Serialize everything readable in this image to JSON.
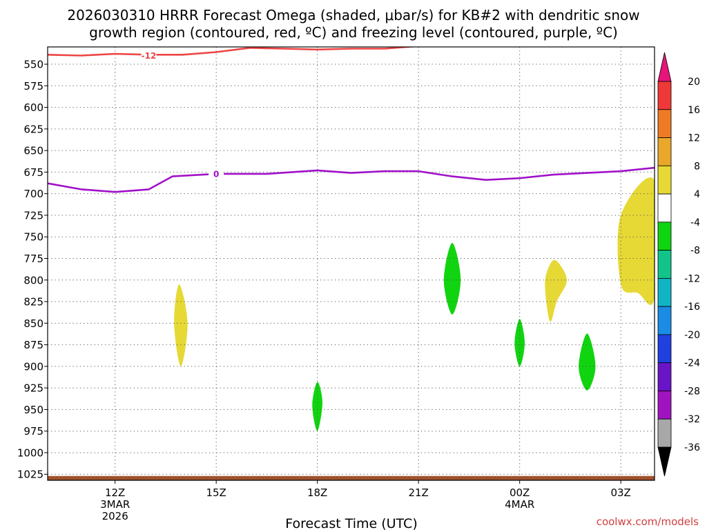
{
  "title": {
    "line1": "2026030310 HRRR Forecast Omega (shaded, μbar/s) for KB#2 with dendritic snow",
    "line2": "growth region (contoured, red, ºC) and freezing level (contoured, purple, ºC)"
  },
  "credit": "coolwx.com/models",
  "chart_data": {
    "type": "time-height cross section (filled contours)",
    "xlabel": "Forecast Time (UTC)",
    "x_ticks": [
      {
        "hour": 12,
        "label": "12Z",
        "sub": [
          "3MAR",
          "2026"
        ]
      },
      {
        "hour": 15,
        "label": "15Z",
        "sub": []
      },
      {
        "hour": 18,
        "label": "18Z",
        "sub": []
      },
      {
        "hour": 21,
        "label": "21Z",
        "sub": []
      },
      {
        "hour": 24,
        "label": "00Z",
        "sub": [
          "4MAR"
        ]
      },
      {
        "hour": 27,
        "label": "03Z",
        "sub": []
      }
    ],
    "xlim_hours": [
      10,
      28
    ],
    "ylabel": "",
    "y_axis": "pressure (mb), reversed",
    "y_ticks": [
      550,
      575,
      600,
      625,
      650,
      675,
      700,
      725,
      750,
      775,
      800,
      825,
      850,
      875,
      900,
      925,
      950,
      975,
      1000,
      1025
    ],
    "ylim_mb": [
      530,
      1032
    ],
    "grid": "dotted",
    "colorbar": {
      "levels": [
        20,
        16,
        12,
        8,
        4,
        -4,
        -8,
        -12,
        -16,
        -20,
        -24,
        -28,
        -32,
        -36
      ],
      "bands": [
        {
          "range": [
            20,
            null
          ],
          "color": "#e6157a"
        },
        {
          "range": [
            16,
            20
          ],
          "color": "#ef3838"
        },
        {
          "range": [
            12,
            16
          ],
          "color": "#ef7a26"
        },
        {
          "range": [
            8,
            12
          ],
          "color": "#e9a82a"
        },
        {
          "range": [
            4,
            8
          ],
          "color": "#e6d935"
        },
        {
          "range": [
            -4,
            4
          ],
          "color": "#ffffff"
        },
        {
          "range": [
            -8,
            -4
          ],
          "color": "#10d410"
        },
        {
          "range": [
            -12,
            -8
          ],
          "color": "#12c48a"
        },
        {
          "range": [
            -16,
            -12
          ],
          "color": "#10b4c4"
        },
        {
          "range": [
            -20,
            -16
          ],
          "color": "#1a8ce6"
        },
        {
          "range": [
            -24,
            -20
          ],
          "color": "#2040e0"
        },
        {
          "range": [
            -28,
            -24
          ],
          "color": "#6a14c8"
        },
        {
          "range": [
            -32,
            -28
          ],
          "color": "#a014c0"
        },
        {
          "range": [
            -36,
            -32
          ],
          "color": "#a8a8a8"
        },
        {
          "range": [
            null,
            -36
          ],
          "color": "#000000"
        }
      ]
    },
    "contours": [
      {
        "label": "-12",
        "units": "ºC",
        "color": "#ee4444",
        "label_at": [
          13.0,
          540
        ],
        "points": [
          [
            10,
            539
          ],
          [
            11,
            540
          ],
          [
            12,
            538
          ],
          [
            13,
            539
          ],
          [
            14,
            539
          ],
          [
            15,
            536
          ],
          [
            16,
            531
          ],
          [
            17,
            532
          ],
          [
            18,
            533
          ],
          [
            19,
            532
          ],
          [
            20,
            532
          ],
          [
            21,
            529
          ],
          [
            21.7,
            525
          ]
        ]
      },
      {
        "label": "0",
        "units": "ºC",
        "color": "#a010c8",
        "label_at": [
          15.0,
          677
        ],
        "points": [
          [
            10,
            688
          ],
          [
            11,
            695
          ],
          [
            12,
            698
          ],
          [
            13,
            695
          ],
          [
            13.7,
            680
          ],
          [
            15,
            677
          ],
          [
            16.5,
            677
          ],
          [
            18,
            673
          ],
          [
            19,
            676
          ],
          [
            20,
            674
          ],
          [
            21,
            674
          ],
          [
            22,
            680
          ],
          [
            23,
            684
          ],
          [
            24,
            682
          ],
          [
            25,
            678
          ],
          [
            26,
            676
          ],
          [
            27,
            674
          ],
          [
            28,
            670
          ]
        ]
      }
    ],
    "shaded_regions": [
      {
        "color": "#e6d935",
        "points": [
          [
            13.9,
            805
          ],
          [
            14.15,
            850
          ],
          [
            13.95,
            900
          ],
          [
            13.75,
            850
          ]
        ]
      },
      {
        "color": "#10d410",
        "points": [
          [
            18.0,
            918
          ],
          [
            18.15,
            942
          ],
          [
            18.0,
            975
          ],
          [
            17.85,
            945
          ]
        ]
      },
      {
        "color": "#10d410",
        "points": [
          [
            22.0,
            757
          ],
          [
            22.25,
            800
          ],
          [
            22.0,
            840
          ],
          [
            21.75,
            800
          ]
        ]
      },
      {
        "color": "#10d410",
        "points": [
          [
            24.0,
            845
          ],
          [
            24.15,
            873
          ],
          [
            24.0,
            900
          ],
          [
            23.85,
            873
          ]
        ]
      },
      {
        "color": "#e6d935",
        "points": [
          [
            24.9,
            782
          ],
          [
            25.1,
            778
          ],
          [
            25.4,
            800
          ],
          [
            25.1,
            825
          ],
          [
            24.9,
            848
          ],
          [
            24.75,
            805
          ]
        ]
      },
      {
        "color": "#10d410",
        "points": [
          [
            26.0,
            862
          ],
          [
            26.25,
            900
          ],
          [
            26.0,
            928
          ],
          [
            25.75,
            900
          ]
        ]
      },
      {
        "color": "#e6d935",
        "points": [
          [
            27.0,
            725
          ],
          [
            28,
            685
          ],
          [
            28,
            820
          ],
          [
            27.5,
            815
          ],
          [
            27.0,
            805
          ]
        ]
      }
    ],
    "surface_band": {
      "color": "#a0522d",
      "top_mb": 1027
    }
  }
}
